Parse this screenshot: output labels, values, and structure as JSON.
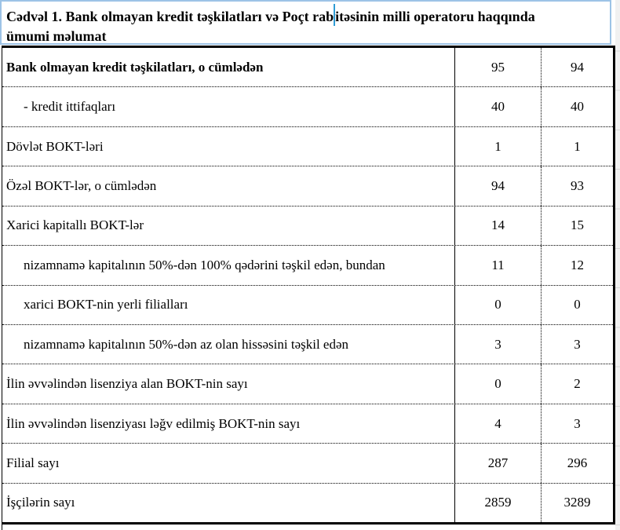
{
  "page": {
    "accent_border_color": "#9dc3e6",
    "caret_color": "#2e9bd4"
  },
  "caption": {
    "line1_before_caret": "Cədvəl 1. Bank olmayan kredit təşkilatları və Poçt rab",
    "line1_after_caret": "itəsinin milli operatoru haqqında",
    "line2": "ümumi məlumat"
  },
  "table": {
    "rows": [
      {
        "label": "Bank olmayan kredit təşkilatları, o cümlədən",
        "col1": "95",
        "col2": "94"
      },
      {
        "label": "- kredit ittifaqları",
        "col1": "40",
        "col2": "40"
      },
      {
        "label": "Dövlət BOKT-ləri",
        "col1": "1",
        "col2": "1"
      },
      {
        "label": "Özəl BOKT-lər, o cümlədən",
        "col1": "94",
        "col2": "93"
      },
      {
        "label": "Xarici kapitallı BOKT-lər",
        "col1": "14",
        "col2": "15"
      },
      {
        "label": "nizamnamə kapitalının 50%-dən 100% qədərini təşkil edən, bundan",
        "col1": "11",
        "col2": "12"
      },
      {
        "label": "xarici BOKT-nin yerli filialları",
        "col1": "0",
        "col2": "0"
      },
      {
        "label": "nizamnamə kapitalının 50%-dən az olan hissəsini təşkil edən",
        "col1": "3",
        "col2": "3"
      },
      {
        "label": "İlin əvvəlindən lisenziya alan BOKT-nin sayı",
        "col1": "0",
        "col2": "2"
      },
      {
        "label": "İlin əvvəlindən lisenziyası ləğv edilmiş BOKT-nin sayı",
        "col1": "4",
        "col2": "3"
      },
      {
        "label": "Filial sayı",
        "col1": "287",
        "col2": "296"
      },
      {
        "label": "İşçilərin sayı",
        "col1": "2859",
        "col2": "3289"
      }
    ]
  }
}
